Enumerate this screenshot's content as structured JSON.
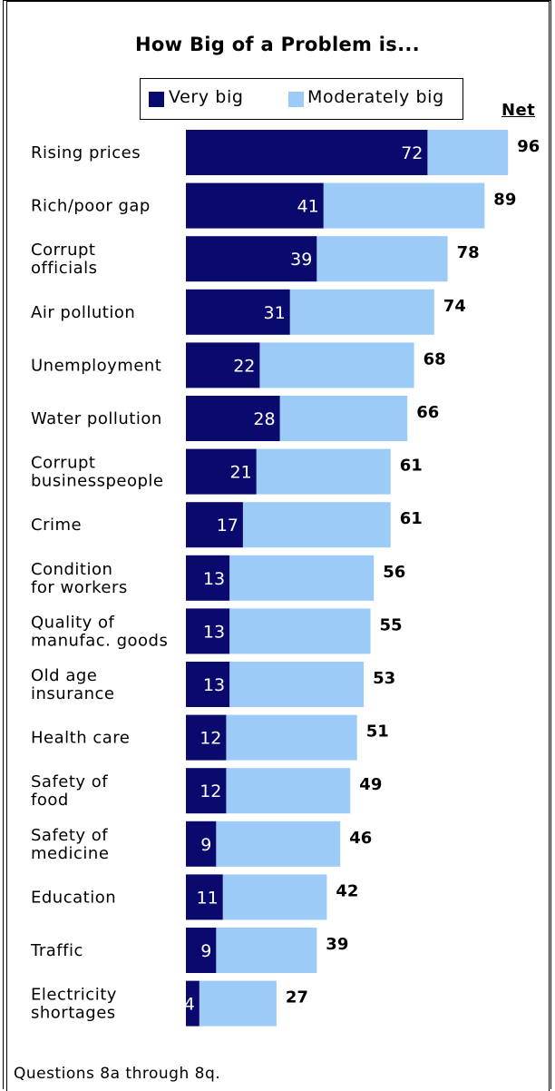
{
  "colors": {
    "very_big": "#0a0a6e",
    "moderately_big": "#9ccbf7"
  },
  "chart_data": {
    "type": "bar",
    "title": "How Big of a Problem is...",
    "legend": {
      "placement": "top",
      "entries": [
        "Very big",
        "Moderately big"
      ]
    },
    "net_header": "Net",
    "categories": [
      [
        "Rising prices"
      ],
      [
        "Rich/poor gap"
      ],
      [
        "Corrupt",
        "officials"
      ],
      [
        "Air pollution"
      ],
      [
        "Unemployment"
      ],
      [
        "Water pollution"
      ],
      [
        "Corrupt",
        "businesspeople"
      ],
      [
        "Crime"
      ],
      [
        "Condition",
        "for workers"
      ],
      [
        "Quality of",
        "manufac. goods"
      ],
      [
        "Old age",
        "insurance"
      ],
      [
        "Health care"
      ],
      [
        "Safety of",
        "food"
      ],
      [
        "Safety of",
        "medicine"
      ],
      [
        "Education"
      ],
      [
        "Traffic"
      ],
      [
        "Electricity",
        "shortages"
      ]
    ],
    "series": [
      {
        "name": "Very big",
        "values": [
          72,
          41,
          39,
          31,
          22,
          28,
          21,
          17,
          13,
          13,
          13,
          12,
          12,
          9,
          11,
          9,
          4
        ]
      },
      {
        "name": "Moderately big",
        "values": [
          24,
          48,
          39,
          43,
          46,
          38,
          40,
          44,
          43,
          42,
          40,
          39,
          37,
          37,
          31,
          30,
          23
        ]
      }
    ],
    "net": [
      96,
      89,
      78,
      74,
      68,
      66,
      61,
      61,
      56,
      55,
      53,
      51,
      49,
      46,
      42,
      39,
      27
    ],
    "stacked": true,
    "orientation": "horizontal",
    "xlim": [
      0,
      100
    ],
    "grid": false
  },
  "footnote": "Questions 8a through 8q."
}
